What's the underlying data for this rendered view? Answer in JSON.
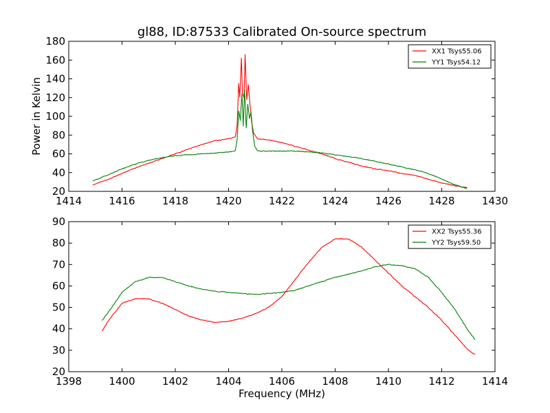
{
  "title": "gl88, ID:87533 Calibrated On-source spectrum",
  "chart_data": [
    {
      "type": "line",
      "xlabel": "",
      "ylabel": "Power in Kelvin",
      "xlim": [
        1414,
        1430
      ],
      "ylim": [
        20,
        180
      ],
      "xticks": [
        "1414",
        "1416",
        "1418",
        "1420",
        "1422",
        "1424",
        "1426",
        "1428",
        "1430"
      ],
      "yticks": [
        "20",
        "40",
        "60",
        "80",
        "100",
        "120",
        "140",
        "160",
        "180"
      ],
      "grid": false,
      "legend_position": "top-right",
      "colors": [
        "#ff0000",
        "#008000"
      ],
      "series": [
        {
          "name": "XX1 Tsys55.06",
          "color": "#ff0000",
          "points": [
            [
              1414.9,
              27
            ],
            [
              1415.5,
              33
            ],
            [
              1416.0,
              39
            ],
            [
              1416.5,
              45
            ],
            [
              1417.0,
              50
            ],
            [
              1417.5,
              55
            ],
            [
              1418.0,
              60
            ],
            [
              1418.5,
              65
            ],
            [
              1419.0,
              70
            ],
            [
              1419.5,
              74
            ],
            [
              1420.0,
              76
            ],
            [
              1420.25,
              78
            ],
            [
              1420.32,
              90
            ],
            [
              1420.38,
              135
            ],
            [
              1420.42,
              120
            ],
            [
              1420.48,
              162
            ],
            [
              1420.52,
              125
            ],
            [
              1420.58,
              120
            ],
            [
              1420.62,
              166
            ],
            [
              1420.68,
              118
            ],
            [
              1420.74,
              134
            ],
            [
              1420.8,
              114
            ],
            [
              1420.86,
              95
            ],
            [
              1420.94,
              82
            ],
            [
              1421.1,
              76
            ],
            [
              1421.5,
              75
            ],
            [
              1422.0,
              72
            ],
            [
              1422.5,
              68
            ],
            [
              1423.0,
              64
            ],
            [
              1423.5,
              60
            ],
            [
              1424.0,
              55
            ],
            [
              1424.5,
              51
            ],
            [
              1425.0,
              47
            ],
            [
              1425.5,
              44
            ],
            [
              1426.0,
              42
            ],
            [
              1426.5,
              39
            ],
            [
              1427.0,
              37
            ],
            [
              1427.5,
              33
            ],
            [
              1428.0,
              29
            ],
            [
              1428.5,
              26
            ],
            [
              1428.95,
              24
            ]
          ]
        },
        {
          "name": "YY1 Tsys54.12",
          "color": "#008000",
          "points": [
            [
              1414.9,
              31
            ],
            [
              1415.5,
              38
            ],
            [
              1416.0,
              44
            ],
            [
              1416.5,
              49
            ],
            [
              1417.0,
              53
            ],
            [
              1417.5,
              56
            ],
            [
              1418.0,
              58
            ],
            [
              1418.5,
              59
            ],
            [
              1419.0,
              60
            ],
            [
              1419.5,
              61
            ],
            [
              1420.0,
              62
            ],
            [
              1420.25,
              63
            ],
            [
              1420.32,
              75
            ],
            [
              1420.38,
              106
            ],
            [
              1420.44,
              96
            ],
            [
              1420.5,
              124
            ],
            [
              1420.55,
              90
            ],
            [
              1420.6,
              128
            ],
            [
              1420.66,
              88
            ],
            [
              1420.72,
              113
            ],
            [
              1420.78,
              98
            ],
            [
              1420.84,
              105
            ],
            [
              1420.9,
              85
            ],
            [
              1420.98,
              68
            ],
            [
              1421.1,
              63
            ],
            [
              1421.5,
              63
            ],
            [
              1422.0,
              63
            ],
            [
              1422.5,
              63
            ],
            [
              1423.0,
              62
            ],
            [
              1423.5,
              61
            ],
            [
              1424.0,
              59
            ],
            [
              1424.5,
              57
            ],
            [
              1425.0,
              55
            ],
            [
              1425.5,
              52
            ],
            [
              1426.0,
              49
            ],
            [
              1426.5,
              46
            ],
            [
              1427.0,
              43
            ],
            [
              1427.5,
              39
            ],
            [
              1428.0,
              33
            ],
            [
              1428.5,
              27
            ],
            [
              1428.95,
              23
            ]
          ]
        }
      ]
    },
    {
      "type": "line",
      "xlabel": "Frequency (MHz)",
      "ylabel": "",
      "xlim": [
        1398,
        1414
      ],
      "ylim": [
        20,
        90
      ],
      "xticks": [
        "1398",
        "1400",
        "1402",
        "1404",
        "1406",
        "1408",
        "1410",
        "1412",
        "1414"
      ],
      "yticks": [
        "20",
        "30",
        "40",
        "50",
        "60",
        "70",
        "80",
        "90"
      ],
      "grid": false,
      "legend_position": "top-right",
      "colors": [
        "#ff0000",
        "#008000"
      ],
      "series": [
        {
          "name": "XX2 Tsys55.36",
          "color": "#ff0000",
          "points": [
            [
              1399.25,
              39
            ],
            [
              1399.5,
              44
            ],
            [
              1400.0,
              52
            ],
            [
              1400.5,
              54
            ],
            [
              1401.0,
              54
            ],
            [
              1401.5,
              52
            ],
            [
              1402.0,
              49
            ],
            [
              1402.5,
              46
            ],
            [
              1403.0,
              44
            ],
            [
              1403.5,
              43
            ],
            [
              1404.0,
              43.5
            ],
            [
              1404.5,
              45
            ],
            [
              1405.0,
              47
            ],
            [
              1405.5,
              50
            ],
            [
              1406.0,
              55
            ],
            [
              1406.5,
              63
            ],
            [
              1407.0,
              71
            ],
            [
              1407.5,
              78
            ],
            [
              1408.0,
              82
            ],
            [
              1408.5,
              82
            ],
            [
              1409.0,
              78
            ],
            [
              1409.5,
              72
            ],
            [
              1410.0,
              66
            ],
            [
              1410.5,
              60
            ],
            [
              1411.0,
              55
            ],
            [
              1411.5,
              50
            ],
            [
              1412.0,
              44
            ],
            [
              1412.5,
              37
            ],
            [
              1413.0,
              30
            ],
            [
              1413.25,
              28
            ]
          ]
        },
        {
          "name": "YY2 Tsys59.50",
          "color": "#008000",
          "points": [
            [
              1399.25,
              44
            ],
            [
              1399.5,
              48
            ],
            [
              1400.0,
              57
            ],
            [
              1400.5,
              62
            ],
            [
              1401.0,
              64
            ],
            [
              1401.5,
              64
            ],
            [
              1402.0,
              62
            ],
            [
              1402.5,
              60
            ],
            [
              1403.0,
              58.5
            ],
            [
              1403.5,
              57.5
            ],
            [
              1404.0,
              57
            ],
            [
              1404.5,
              56.5
            ],
            [
              1405.0,
              56
            ],
            [
              1405.5,
              56.5
            ],
            [
              1406.0,
              57
            ],
            [
              1406.5,
              58
            ],
            [
              1407.0,
              60
            ],
            [
              1407.5,
              62
            ],
            [
              1408.0,
              64
            ],
            [
              1408.5,
              65.5
            ],
            [
              1409.0,
              67
            ],
            [
              1409.5,
              69
            ],
            [
              1410.0,
              70
            ],
            [
              1410.5,
              69.5
            ],
            [
              1411.0,
              68
            ],
            [
              1411.5,
              64
            ],
            [
              1412.0,
              57
            ],
            [
              1412.5,
              49
            ],
            [
              1413.0,
              39
            ],
            [
              1413.25,
              35
            ]
          ]
        }
      ]
    }
  ]
}
